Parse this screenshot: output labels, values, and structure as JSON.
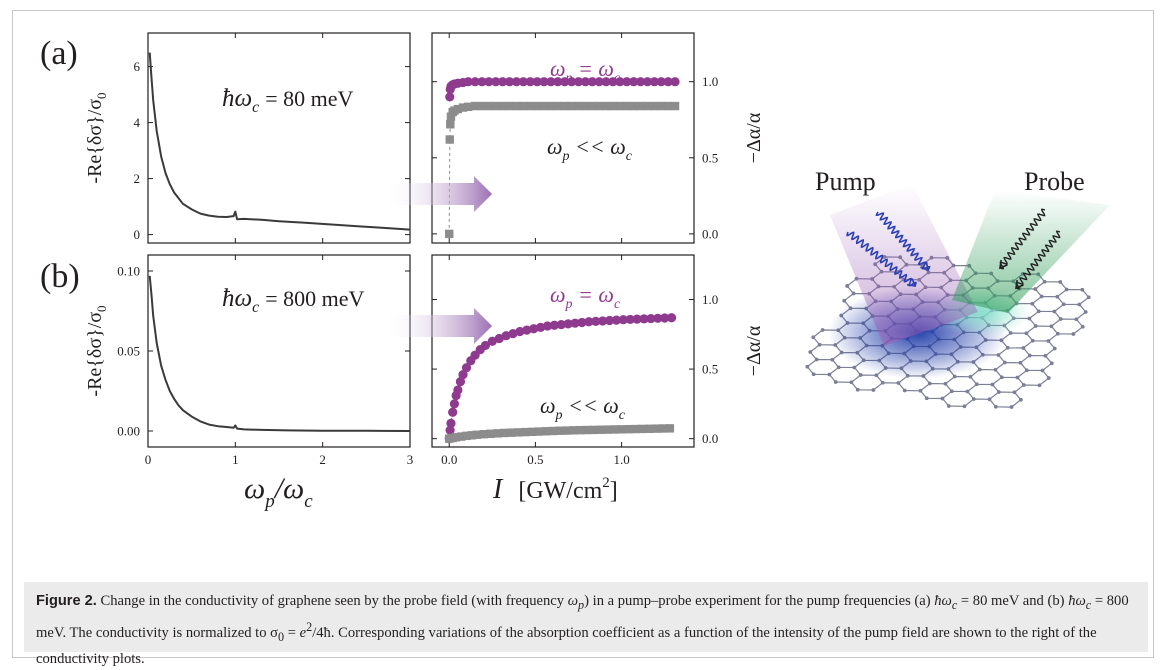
{
  "panels": {
    "a": {
      "letter": "(a)",
      "energy_label": "ħω",
      "energy_sub": "c",
      "energy_value": "= 80 meV"
    },
    "b": {
      "letter": "(b)",
      "energy_label": "ħω",
      "energy_sub": "c",
      "energy_value": "= 800 meV"
    }
  },
  "axes": {
    "left_ylabel": "-Re{δσ}/σ",
    "left_ylabel_sub": "0",
    "left_xlabel_main": "ω",
    "left_xlabel_sub1": "p",
    "left_xlabel_slash": "/ω",
    "left_xlabel_sub2": "c",
    "right_ylabel": "−Δα/α",
    "right_xlabel_var": "I",
    "right_xlabel_unit": "[GW/cm",
    "right_xlabel_sup": "2",
    "right_xlabel_close": "]"
  },
  "labels": {
    "equal_main": "ω",
    "equal_sub": "p",
    "equal_rest": " = ω",
    "equal_sub2": "c",
    "ll_main": "ω",
    "ll_sub": "p",
    "ll_rest": " << ω",
    "ll_sub2": "c",
    "pump": "Pump",
    "probe": "Probe"
  },
  "colors": {
    "curve": "#3a3a3a",
    "purple": "#8e3a8e",
    "gray": "#8c8c8c",
    "arrow": "#9a6fb2",
    "pump_beam": "#9b5fb5",
    "probe_beam": "#2e9b57",
    "graphene": "#7c7f95",
    "hotspot": "#1e3aa8"
  },
  "chart_data": [
    {
      "type": "line",
      "panel": "a-left",
      "xlabel": "ω_p/ω_c",
      "ylabel": "-Re{δσ}/σ_0",
      "xlim": [
        0,
        3
      ],
      "ylim": [
        -0.3,
        7.2
      ],
      "xticks": [
        0,
        1,
        2,
        3
      ],
      "xtick_labels": [
        "",
        "",
        "",
        ""
      ],
      "yticks": [
        0,
        2,
        4,
        6
      ],
      "ytick_labels": [
        "0",
        "2",
        "4",
        "6"
      ],
      "x": [
        0.02,
        0.04,
        0.06,
        0.1,
        0.15,
        0.2,
        0.25,
        0.3,
        0.35,
        0.4,
        0.5,
        0.6,
        0.7,
        0.8,
        0.9,
        0.98,
        1.0,
        1.02,
        1.1,
        1.3,
        1.5,
        1.8,
        2.1,
        2.4,
        2.7,
        3.0
      ],
      "y": [
        6.5,
        5.6,
        4.8,
        3.7,
        2.8,
        2.2,
        1.8,
        1.5,
        1.3,
        1.1,
        0.9,
        0.75,
        0.68,
        0.64,
        0.63,
        0.66,
        0.82,
        0.55,
        0.56,
        0.53,
        0.48,
        0.42,
        0.36,
        0.3,
        0.24,
        0.18
      ]
    },
    {
      "type": "scatter",
      "panel": "a-right",
      "xlabel": "",
      "ylabel": "−Δα/α",
      "xlim": [
        -0.1,
        1.42
      ],
      "ylim": [
        -0.06,
        1.32
      ],
      "xticks": [
        0.0,
        0.5,
        1.0
      ],
      "xtick_labels": [
        "",
        "",
        ""
      ],
      "yticks": [
        0.0,
        0.5,
        1.0
      ],
      "ytick_labels": [
        "0.0",
        "0.5",
        "1.0"
      ],
      "series": [
        {
          "name": "ω_p = ω_c",
          "marker": "circle",
          "x": [
            0.003,
            0.006,
            0.01,
            0.02,
            0.03,
            0.05,
            0.08,
            0.11,
            0.15,
            0.19,
            0.23,
            0.27,
            0.31,
            0.35,
            0.39,
            0.43,
            0.47,
            0.51,
            0.55,
            0.59,
            0.63,
            0.67,
            0.71,
            0.75,
            0.79,
            0.83,
            0.87,
            0.91,
            0.95,
            0.99,
            1.03,
            1.07,
            1.11,
            1.15,
            1.19,
            1.23,
            1.27,
            1.31
          ],
          "y": [
            0.9,
            0.95,
            0.97,
            0.98,
            0.985,
            0.99,
            0.995,
            1.0,
            1.0,
            1.0,
            1.0,
            1.0,
            1.0,
            1.0,
            1.0,
            1.0,
            1.0,
            1.0,
            1.0,
            1.0,
            1.0,
            1.0,
            1.0,
            1.0,
            1.0,
            1.0,
            1.0,
            1.0,
            1.0,
            1.0,
            1.0,
            1.0,
            1.0,
            1.0,
            1.0,
            1.0,
            1.0,
            1.0
          ]
        },
        {
          "name": "ω_p << ω_c",
          "marker": "square",
          "x": [
            0.0,
            0.003,
            0.006,
            0.01,
            0.02,
            0.03,
            0.05,
            0.08,
            0.11,
            0.15,
            0.19,
            0.23,
            0.27,
            0.31,
            0.35,
            0.39,
            0.43,
            0.47,
            0.51,
            0.55,
            0.59,
            0.63,
            0.67,
            0.71,
            0.75,
            0.79,
            0.83,
            0.87,
            0.91,
            0.95,
            0.99,
            1.03,
            1.07,
            1.11,
            1.15,
            1.19,
            1.23,
            1.27,
            1.31
          ],
          "y": [
            0.0,
            0.62,
            0.72,
            0.77,
            0.8,
            0.81,
            0.82,
            0.83,
            0.835,
            0.84,
            0.84,
            0.84,
            0.84,
            0.84,
            0.84,
            0.84,
            0.84,
            0.84,
            0.84,
            0.84,
            0.84,
            0.84,
            0.84,
            0.84,
            0.84,
            0.84,
            0.84,
            0.84,
            0.84,
            0.84,
            0.84,
            0.84,
            0.84,
            0.84,
            0.84,
            0.84,
            0.84,
            0.84,
            0.84
          ]
        }
      ]
    },
    {
      "type": "line",
      "panel": "b-left",
      "xlabel": "ω_p/ω_c",
      "ylabel": "-Re{δσ}/σ_0",
      "xlim": [
        0,
        3
      ],
      "ylim": [
        -0.01,
        0.11
      ],
      "xticks": [
        0,
        1,
        2,
        3
      ],
      "xtick_labels": [
        "0",
        "1",
        "2",
        "3"
      ],
      "yticks": [
        0.0,
        0.05,
        0.1
      ],
      "ytick_labels": [
        "0.00",
        "0.05",
        "0.10"
      ],
      "x": [
        0.02,
        0.04,
        0.06,
        0.1,
        0.15,
        0.2,
        0.25,
        0.3,
        0.35,
        0.4,
        0.5,
        0.6,
        0.7,
        0.8,
        0.9,
        0.98,
        1.0,
        1.02,
        1.1,
        1.3,
        1.6,
        2.0,
        2.5,
        3.0
      ],
      "y": [
        0.097,
        0.085,
        0.072,
        0.055,
        0.041,
        0.032,
        0.025,
        0.02,
        0.016,
        0.013,
        0.009,
        0.006,
        0.004,
        0.003,
        0.0025,
        0.002,
        0.0035,
        0.0015,
        0.001,
        0.0007,
        0.0004,
        0.0002,
        0.0001,
        0.0
      ]
    },
    {
      "type": "scatter",
      "panel": "b-right",
      "xlabel": "I [GW/cm²]",
      "ylabel": "−Δα/α",
      "xlim": [
        -0.1,
        1.42
      ],
      "ylim": [
        -0.06,
        1.32
      ],
      "xticks": [
        0.0,
        0.5,
        1.0
      ],
      "xtick_labels": [
        "0.0",
        "0.5",
        "1.0"
      ],
      "yticks": [
        0.0,
        0.5,
        1.0
      ],
      "ytick_labels": [
        "0.0",
        "0.5",
        "1.0"
      ],
      "series": [
        {
          "name": "ω_p = ω_c",
          "marker": "circle",
          "x": [
            0.0,
            0.005,
            0.01,
            0.02,
            0.03,
            0.04,
            0.05,
            0.065,
            0.08,
            0.1,
            0.125,
            0.15,
            0.18,
            0.21,
            0.25,
            0.29,
            0.33,
            0.37,
            0.41,
            0.45,
            0.49,
            0.53,
            0.57,
            0.61,
            0.65,
            0.69,
            0.73,
            0.77,
            0.81,
            0.85,
            0.89,
            0.93,
            0.97,
            1.01,
            1.05,
            1.09,
            1.13,
            1.17,
            1.21,
            1.25,
            1.29
          ],
          "y": [
            0.0,
            0.06,
            0.11,
            0.19,
            0.25,
            0.31,
            0.35,
            0.41,
            0.46,
            0.51,
            0.56,
            0.6,
            0.64,
            0.67,
            0.7,
            0.72,
            0.74,
            0.755,
            0.77,
            0.78,
            0.79,
            0.8,
            0.81,
            0.815,
            0.82,
            0.825,
            0.83,
            0.835,
            0.84,
            0.843,
            0.846,
            0.849,
            0.852,
            0.855,
            0.857,
            0.859,
            0.861,
            0.863,
            0.865,
            0.867,
            0.869
          ]
        },
        {
          "name": "ω_p << ω_c",
          "marker": "square",
          "x": [
            0.0,
            0.02,
            0.04,
            0.07,
            0.1,
            0.13,
            0.16,
            0.2,
            0.24,
            0.28,
            0.32,
            0.36,
            0.4,
            0.44,
            0.48,
            0.52,
            0.56,
            0.6,
            0.64,
            0.68,
            0.72,
            0.76,
            0.8,
            0.84,
            0.88,
            0.92,
            0.96,
            1.0,
            1.04,
            1.08,
            1.12,
            1.16,
            1.2,
            1.24,
            1.28
          ],
          "y": [
            0.0,
            0.005,
            0.01,
            0.015,
            0.02,
            0.024,
            0.028,
            0.032,
            0.035,
            0.038,
            0.041,
            0.043,
            0.045,
            0.047,
            0.049,
            0.051,
            0.053,
            0.055,
            0.057,
            0.058,
            0.06,
            0.061,
            0.062,
            0.063,
            0.064,
            0.065,
            0.066,
            0.067,
            0.068,
            0.069,
            0.07,
            0.071,
            0.072,
            0.073,
            0.074
          ]
        }
      ]
    }
  ],
  "caption": {
    "label": "Figure 2.",
    "t1": " Change in the conductivity of graphene seen by the probe field (with frequency ",
    "m1": "ω",
    "m1sub": "p",
    "t2": ") in a pump–probe experiment for the pump frequencies (a) ",
    "m2": "ħω",
    "m2sub": "c",
    "t3": " = 80  meV and (b) ",
    "m3": "ħω",
    "m3sub": "c",
    "t4": " = 800  meV. The conductivity is normalized to σ",
    "m4sub": "0",
    "t5": " = ",
    "m5": "e",
    "m5sup": "2",
    "t6": "/4ħ. Corresponding variations of the absorption coefficient as a function of the intensity of the pump field are shown to the right of the conductivity plots."
  }
}
